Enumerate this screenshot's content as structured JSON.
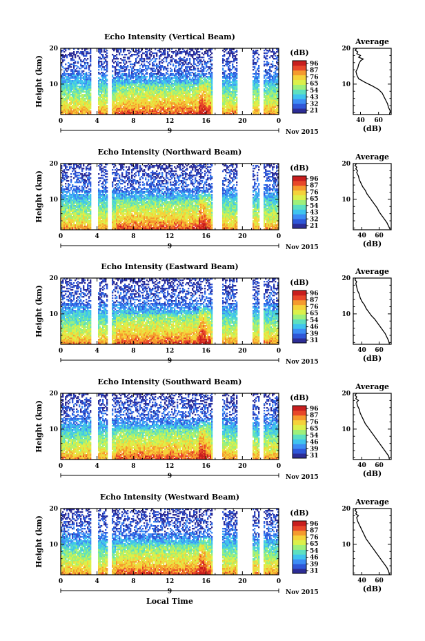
{
  "figure": {
    "xlabel": "Local Time",
    "date_label": "Nov 2015",
    "day_label": "9",
    "colorbar_unit": "(dB)",
    "colorbar_ticks": [
      [
        "96",
        "87",
        "76",
        "65",
        "54",
        "43",
        "32",
        "21"
      ],
      [
        "96",
        "87",
        "76",
        "65",
        "54",
        "43",
        "32",
        "21"
      ],
      [
        "96",
        "87",
        "76",
        "65",
        "54",
        "46",
        "39",
        "31"
      ],
      [
        "96",
        "87",
        "76",
        "65",
        "54",
        "46",
        "39",
        "31"
      ],
      [
        "96",
        "87",
        "76",
        "65",
        "54",
        "46",
        "39",
        "31"
      ]
    ],
    "colors": [
      "#2d2d96",
      "#2f57d8",
      "#3d8df5",
      "#40c4ee",
      "#5de0c0",
      "#9ef07a",
      "#dcf04a",
      "#f5d23a",
      "#f59a2e",
      "#e8472a",
      "#c81e1e"
    ]
  },
  "chart_data": [
    {
      "type": "heatmap",
      "title": "Echo Intensity (Vertical Beam)",
      "ylabel": "Height (km)",
      "xlim": [
        0,
        24
      ],
      "ylim": [
        1.5,
        20
      ],
      "xticks": [
        "0",
        "4",
        "8",
        "12",
        "16",
        "20",
        "0"
      ],
      "yticks": [
        [
          "20",
          20
        ],
        [
          "10",
          10
        ]
      ],
      "gaps": [
        [
          3.3,
          4.1
        ],
        [
          5.1,
          5.6
        ],
        [
          16.7,
          17.8
        ],
        [
          19.5,
          21.1
        ],
        [
          21.9,
          22.4
        ]
      ],
      "profile": {
        "title": "Average",
        "xlabel": "(dB)",
        "xlim": [
          32,
          74
        ],
        "xticks": [
          [
            "40",
            40
          ],
          [
            "60",
            60
          ]
        ],
        "ylim": [
          1.5,
          20
        ],
        "yticks": [
          [
            "20",
            20
          ],
          [
            "10",
            10
          ]
        ],
        "points": [
          [
            72,
            1.5
          ],
          [
            73,
            2.5
          ],
          [
            71,
            3.5
          ],
          [
            70,
            4.5
          ],
          [
            68,
            5.5
          ],
          [
            66,
            6.5
          ],
          [
            64,
            7.5
          ],
          [
            60,
            8.5
          ],
          [
            53,
            9.5
          ],
          [
            45,
            10.5
          ],
          [
            38,
            11.5
          ],
          [
            36,
            12.5
          ],
          [
            35,
            13.5
          ],
          [
            37,
            14.5
          ],
          [
            38,
            15.5
          ],
          [
            40,
            16.5
          ],
          [
            43,
            17
          ],
          [
            38,
            17.5
          ],
          [
            40,
            18
          ],
          [
            36,
            18.5
          ],
          [
            37,
            19
          ],
          [
            34,
            19.5
          ],
          [
            36,
            20
          ]
        ]
      }
    },
    {
      "type": "heatmap",
      "title": "Echo Intensity (Northward Beam)",
      "ylabel": "Height (km)",
      "xlim": [
        0,
        24
      ],
      "ylim": [
        1.5,
        20
      ],
      "xticks": [
        "0",
        "4",
        "8",
        "12",
        "16",
        "20",
        "0"
      ],
      "yticks": [
        [
          "20",
          20
        ],
        [
          "10",
          10
        ]
      ],
      "gaps": [
        [
          3.3,
          4.1
        ],
        [
          5.1,
          5.6
        ],
        [
          16.7,
          17.8
        ],
        [
          19.5,
          21.1
        ],
        [
          21.9,
          22.4
        ]
      ],
      "profile": {
        "title": "Average",
        "xlabel": "(dB)",
        "xlim": [
          30,
          74
        ],
        "xticks": [
          [
            "40",
            40
          ],
          [
            "60",
            60
          ]
        ],
        "ylim": [
          1.5,
          20
        ],
        "yticks": [
          [
            "20",
            20
          ],
          [
            "10",
            10
          ]
        ],
        "points": [
          [
            73,
            1.5
          ],
          [
            71,
            2.5
          ],
          [
            69,
            3.5
          ],
          [
            66,
            4.5
          ],
          [
            63,
            5.5
          ],
          [
            60,
            6.5
          ],
          [
            58,
            7.5
          ],
          [
            55,
            8.5
          ],
          [
            52,
            9.5
          ],
          [
            49,
            10.5
          ],
          [
            46,
            11.5
          ],
          [
            44,
            12.5
          ],
          [
            41,
            13.5
          ],
          [
            39,
            14.5
          ],
          [
            37,
            15.5
          ],
          [
            36,
            16.5
          ],
          [
            34,
            17.5
          ],
          [
            35,
            18
          ],
          [
            33,
            18.5
          ],
          [
            34,
            19
          ],
          [
            32,
            19.5
          ],
          [
            34,
            20
          ]
        ]
      }
    },
    {
      "type": "heatmap",
      "title": "Echo Intensity (Eastward Beam)",
      "ylabel": "Height (km)",
      "xlim": [
        0,
        24
      ],
      "ylim": [
        1.5,
        20
      ],
      "xticks": [
        "0",
        "4",
        "8",
        "12",
        "16",
        "20",
        "0"
      ],
      "yticks": [
        [
          "20",
          20
        ],
        [
          "10",
          10
        ]
      ],
      "gaps": [
        [
          3.3,
          4.1
        ],
        [
          5.1,
          5.6
        ],
        [
          16.7,
          17.8
        ],
        [
          19.5,
          21.1
        ],
        [
          21.9,
          22.4
        ]
      ],
      "profile": {
        "title": "Average",
        "xlabel": "(dB)",
        "xlim": [
          30,
          74
        ],
        "xticks": [
          [
            "40",
            40
          ],
          [
            "60",
            60
          ]
        ],
        "ylim": [
          1.5,
          20
        ],
        "yticks": [
          [
            "20",
            20
          ],
          [
            "10",
            10
          ]
        ],
        "points": [
          [
            72,
            1.5
          ],
          [
            71,
            2.5
          ],
          [
            69,
            3.5
          ],
          [
            67,
            4.5
          ],
          [
            64,
            5.5
          ],
          [
            61,
            6.5
          ],
          [
            58,
            7.5
          ],
          [
            55,
            8.5
          ],
          [
            51,
            9.5
          ],
          [
            48,
            10.5
          ],
          [
            45,
            11.5
          ],
          [
            43,
            12.5
          ],
          [
            40,
            13.5
          ],
          [
            38,
            14.5
          ],
          [
            37,
            15.5
          ],
          [
            35,
            16.5
          ],
          [
            34,
            17.5
          ],
          [
            33,
            18.5
          ],
          [
            34,
            19
          ],
          [
            32,
            19.5
          ],
          [
            33,
            20
          ]
        ]
      }
    },
    {
      "type": "heatmap",
      "title": "Echo Intensity (Southward Beam)",
      "ylabel": "Height (km)",
      "xlim": [
        0,
        24
      ],
      "ylim": [
        1.5,
        20
      ],
      "xticks": [
        "0",
        "4",
        "8",
        "12",
        "16",
        "20",
        "0"
      ],
      "yticks": [
        [
          "20",
          20
        ],
        [
          "10",
          10
        ]
      ],
      "gaps": [
        [
          3.3,
          4.1
        ],
        [
          5.1,
          5.6
        ],
        [
          16.7,
          17.8
        ],
        [
          19.5,
          21.1
        ],
        [
          21.9,
          22.4
        ]
      ],
      "profile": {
        "title": "Average",
        "xlabel": "(dB)",
        "xlim": [
          30,
          74
        ],
        "xticks": [
          [
            "40",
            40
          ],
          [
            "60",
            60
          ]
        ],
        "ylim": [
          1.5,
          20
        ],
        "yticks": [
          [
            "20",
            20
          ],
          [
            "10",
            10
          ]
        ],
        "points": [
          [
            72,
            1.5
          ],
          [
            71,
            2.5
          ],
          [
            68,
            3.5
          ],
          [
            65,
            4.5
          ],
          [
            62,
            5.5
          ],
          [
            59,
            6.5
          ],
          [
            56,
            7.5
          ],
          [
            53,
            8.5
          ],
          [
            50,
            9.5
          ],
          [
            47,
            10.5
          ],
          [
            44,
            11.5
          ],
          [
            42,
            12.5
          ],
          [
            40,
            13.5
          ],
          [
            38,
            14.5
          ],
          [
            37,
            15.5
          ],
          [
            35,
            16.5
          ],
          [
            34,
            17.5
          ],
          [
            36,
            18
          ],
          [
            33,
            18.5
          ],
          [
            34,
            19
          ],
          [
            32,
            19.5
          ],
          [
            34,
            20
          ]
        ]
      }
    },
    {
      "type": "heatmap",
      "title": "Echo Intensity (Westward Beam)",
      "ylabel": "Height (km)",
      "xlim": [
        0,
        24
      ],
      "ylim": [
        1.5,
        20
      ],
      "xticks": [
        "0",
        "4",
        "8",
        "12",
        "16",
        "20",
        "0"
      ],
      "yticks": [
        [
          "20",
          20
        ],
        [
          "10",
          10
        ]
      ],
      "gaps": [
        [
          3.3,
          4.1
        ],
        [
          5.1,
          5.6
        ],
        [
          16.7,
          17.8
        ],
        [
          19.5,
          21.1
        ],
        [
          21.9,
          22.4
        ]
      ],
      "profile": {
        "title": "Average",
        "xlabel": "(dB)",
        "xlim": [
          30,
          74
        ],
        "xticks": [
          [
            "40",
            40
          ],
          [
            "60",
            60
          ]
        ],
        "ylim": [
          1.5,
          20
        ],
        "yticks": [
          [
            "20",
            20
          ],
          [
            "10",
            10
          ]
        ],
        "points": [
          [
            72,
            1.5
          ],
          [
            71,
            2.5
          ],
          [
            69,
            3.5
          ],
          [
            66,
            4.5
          ],
          [
            63,
            5.5
          ],
          [
            60,
            6.5
          ],
          [
            57,
            7.5
          ],
          [
            54,
            8.5
          ],
          [
            51,
            9.5
          ],
          [
            48,
            10.5
          ],
          [
            45,
            11.5
          ],
          [
            43,
            12.5
          ],
          [
            41,
            13.5
          ],
          [
            39,
            14.5
          ],
          [
            37,
            15.5
          ],
          [
            35,
            16.5
          ],
          [
            34,
            17.5
          ],
          [
            36,
            18
          ],
          [
            33,
            18.5
          ],
          [
            34,
            19
          ],
          [
            32,
            19.5
          ],
          [
            34,
            20
          ]
        ]
      }
    }
  ]
}
